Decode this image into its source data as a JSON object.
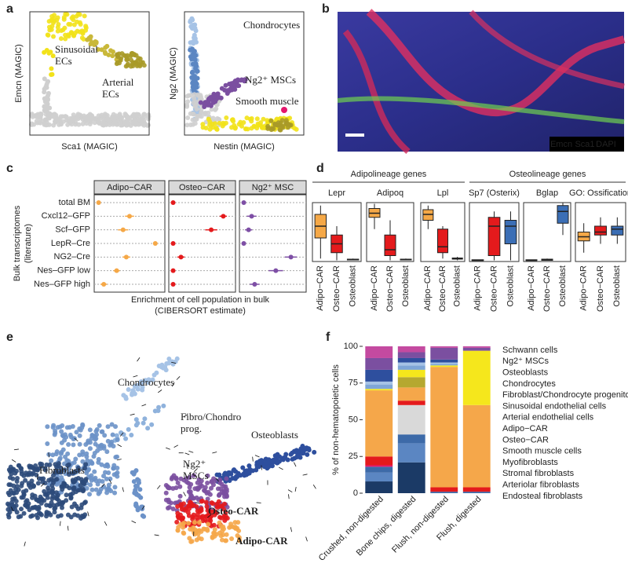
{
  "panel_labels": [
    "a",
    "b",
    "c",
    "d",
    "e",
    "f"
  ],
  "panel_a": {
    "plots": [
      {
        "xlabel": "Sca1 (MAGIC)",
        "ylabel": "Emcn (MAGIC)",
        "annotations": [
          [
            "Sinusoidal",
            "ECs"
          ],
          [
            "Arterial",
            "ECs"
          ]
        ]
      },
      {
        "xlabel": "Nestin (MAGIC)",
        "ylabel": "Ng2 (MAGIC)",
        "annotations": [
          [
            "Chondrocytes"
          ],
          [
            "Ng2⁺ MSCs"
          ],
          [
            "Smooth muscle"
          ]
        ]
      }
    ]
  },
  "panel_b": {
    "legend": [
      "Emcn",
      "Sca1",
      "DAPI"
    ]
  },
  "panel_e": {
    "labels": [
      [
        "Chondrocytes"
      ],
      [
        "Fibro/Chondro",
        "prog."
      ],
      [
        "Osteoblasts"
      ],
      [
        "Fibroblasts"
      ],
      [
        "Ng2⁺",
        "MSCs"
      ],
      [
        "Osteo-CAR"
      ],
      [
        "Adipo-CAR"
      ]
    ]
  },
  "chart_data": [
    {
      "type": "dot",
      "ylabel": [
        "Bulk transcriptomes",
        "(literature)"
      ],
      "xlabel": [
        "Enrichment of cell population in bulk",
        "(CIBERSORT estimate)"
      ],
      "categories": [
        "total BM",
        "Cxcl12–GFP",
        "Scf–GFP",
        "LepR–Cre",
        "NG2–Cre",
        "Nes–GFP low",
        "Nes–GFP high"
      ],
      "xlim": [
        0,
        1
      ],
      "grid": true,
      "series": [
        {
          "name": "Adipo−CAR",
          "color": "#f5a847",
          "values": [
            0.02,
            0.5,
            0.4,
            0.9,
            0.45,
            0.3,
            0.1
          ],
          "errors": [
            0.01,
            0.07,
            0.08,
            0.03,
            0.06,
            0.05,
            0.05
          ]
        },
        {
          "name": "Osteo−CAR",
          "color": "#e41a1c",
          "values": [
            0.02,
            0.85,
            0.65,
            0.02,
            0.15,
            0.02,
            0.02
          ],
          "errors": [
            0.01,
            0.06,
            0.1,
            0.01,
            0.06,
            0.01,
            0.01
          ]
        },
        {
          "name": "Ng2⁺ MSC",
          "color": "#7e4fa5",
          "values": [
            0.02,
            0.15,
            0.1,
            0.02,
            0.8,
            0.55,
            0.2
          ],
          "errors": [
            0.01,
            0.08,
            0.06,
            0.01,
            0.1,
            0.12,
            0.08
          ]
        }
      ]
    },
    {
      "type": "box",
      "group_titles": [
        "Adipolineage genes",
        "Osteolineage genes"
      ],
      "facets": [
        "Lepr",
        "Adipoq",
        "Lpl",
        "Sp7 (Osterix)",
        "Bglap",
        "GO: Ossification"
      ],
      "categories": [
        "Adipo−CAR",
        "Osteo−CAR",
        "Osteoblast"
      ],
      "colors": [
        "#f5a847",
        "#e41a1c",
        "#3b6eb5"
      ],
      "ylim": [
        0,
        1
      ],
      "boxes": [
        [
          [
            0.05,
            0.4,
            0.6,
            0.8,
            0.95
          ],
          [
            0.02,
            0.15,
            0.3,
            0.45,
            0.6
          ],
          [
            0.02,
            0.03,
            0.03,
            0.04,
            0.05
          ]
        ],
        [
          [
            0.55,
            0.75,
            0.82,
            0.9,
            0.98
          ],
          [
            0.02,
            0.1,
            0.2,
            0.45,
            0.7
          ],
          [
            0.02,
            0.03,
            0.03,
            0.04,
            0.05
          ]
        ],
        [
          [
            0.55,
            0.7,
            0.8,
            0.88,
            0.95
          ],
          [
            0.05,
            0.15,
            0.25,
            0.55,
            0.6
          ],
          [
            0.02,
            0.04,
            0.05,
            0.06,
            0.08
          ]
        ],
        [
          [
            0.02,
            0.02,
            0.02,
            0.03,
            0.03
          ],
          [
            0.02,
            0.1,
            0.6,
            0.75,
            0.85
          ],
          [
            0.02,
            0.3,
            0.6,
            0.7,
            0.85
          ]
        ],
        [
          [
            0.02,
            0.02,
            0.02,
            0.03,
            0.03
          ],
          [
            0.02,
            0.02,
            0.03,
            0.04,
            0.05
          ],
          [
            0.45,
            0.65,
            0.85,
            0.95,
            1.0
          ]
        ],
        [
          [
            0.15,
            0.35,
            0.42,
            0.5,
            0.65
          ],
          [
            0.3,
            0.45,
            0.5,
            0.6,
            0.75
          ],
          [
            0.3,
            0.45,
            0.55,
            0.6,
            0.75
          ]
        ]
      ]
    },
    {
      "type": "stacked_bar",
      "ylabel": "% of non-hematopoietic cells",
      "categories": [
        "Crushed, non-digested",
        "Bone chips, digested",
        "Flush, non-digested",
        "Flush, digested"
      ],
      "ylim": [
        0,
        100
      ],
      "yticks": [
        0,
        25,
        50,
        75,
        100
      ],
      "series": [
        {
          "name": "Schwann cells",
          "color": "#c44aa0",
          "values": [
            8,
            4,
            1,
            1
          ]
        },
        {
          "name": "Ng2⁺ MSCs",
          "color": "#7b4fa0",
          "values": [
            8,
            4,
            8,
            2
          ]
        },
        {
          "name": "Osteoblasts",
          "color": "#2e4f9e",
          "values": [
            8,
            3,
            2,
            0
          ]
        },
        {
          "name": "Chondrocytes",
          "color": "#a6c3e6",
          "values": [
            2,
            2,
            1,
            0
          ]
        },
        {
          "name": "Fibroblast/Chondrocyte progenitors",
          "color": "#7fa6d6",
          "values": [
            3,
            3,
            1,
            0
          ]
        },
        {
          "name": "Sinusoidal endothelial cells",
          "color": "#f5e71c",
          "values": [
            1,
            5,
            1,
            37
          ]
        },
        {
          "name": "Arterial endothelial cells",
          "color": "#b5a830",
          "values": [
            0,
            7,
            0,
            0
          ]
        },
        {
          "name": "Adipo−CAR",
          "color": "#f5a74a",
          "values": [
            45,
            9,
            82,
            56
          ]
        },
        {
          "name": "Osteo−CAR",
          "color": "#e41a1c",
          "values": [
            6,
            3,
            3,
            3
          ]
        },
        {
          "name": "Smooth muscle cells",
          "color": "#e4176d",
          "values": [
            1,
            0,
            0,
            0
          ]
        },
        {
          "name": "Myofibroblasts",
          "color": "#d9d9d9",
          "values": [
            0,
            20,
            0,
            0
          ]
        },
        {
          "name": "Stromal fibroblasts",
          "color": "#3d6aa8",
          "values": [
            4,
            6,
            1,
            1
          ]
        },
        {
          "name": "Arteriolar fibroblasts",
          "color": "#5b86c2",
          "values": [
            6,
            13,
            0,
            0
          ]
        },
        {
          "name": "Endosteal fibroblasts",
          "color": "#1b3a66",
          "values": [
            8,
            21,
            0,
            0
          ]
        }
      ]
    }
  ]
}
